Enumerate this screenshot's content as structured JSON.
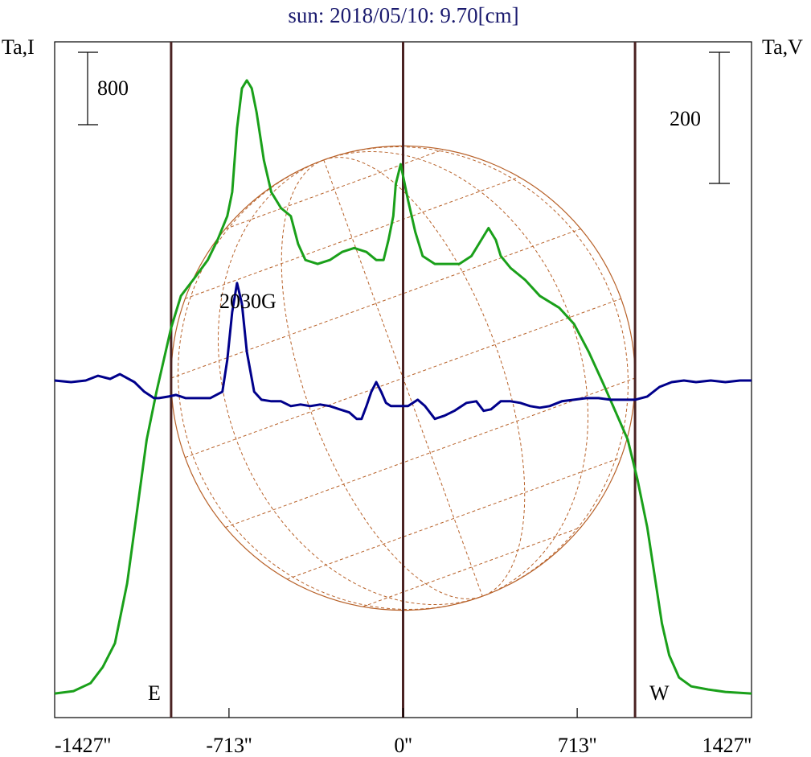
{
  "chart_data": {
    "type": "line",
    "title": "sun: 2018/05/10: 9.70[cm]",
    "y_left_label": "Ta,I",
    "y_right_label": "Ta,V",
    "x_ticks": [
      "-1427''",
      "-713''",
      "0''",
      "713''",
      "1427''"
    ],
    "x_tick_values": [
      -1427,
      -713,
      0,
      713,
      1427
    ],
    "xlim": [
      -1427,
      1427
    ],
    "scale_bar_left": "800",
    "scale_bar_right": "200",
    "annotation": "2030G",
    "annotation_x": -713,
    "limb_east_label": "E",
    "limb_west_label": "W",
    "limb_x": [
      -950,
      950
    ],
    "center_x": 0,
    "solar_radius": 950,
    "colors": {
      "intensity": "#1aa01a",
      "polarization": "#00008b",
      "vertical_lines": "#4a2222",
      "disk": "#b8622a",
      "title": "#1a1a6e"
    },
    "series": [
      {
        "key": "intensity",
        "ylim": [
          0,
          8000
        ],
        "points": [
          [
            -1427,
            120
          ],
          [
            -1350,
            150
          ],
          [
            -1280,
            250
          ],
          [
            -1230,
            450
          ],
          [
            -1180,
            750
          ],
          [
            -1130,
            1500
          ],
          [
            -1090,
            2400
          ],
          [
            -1050,
            3300
          ],
          [
            -1010,
            3900
          ],
          [
            -980,
            4300
          ],
          [
            -950,
            4700
          ],
          [
            -910,
            5100
          ],
          [
            -860,
            5300
          ],
          [
            -800,
            5550
          ],
          [
            -760,
            5800
          ],
          [
            -720,
            6100
          ],
          [
            -700,
            6400
          ],
          [
            -690,
            6800
          ],
          [
            -680,
            7200
          ],
          [
            -660,
            7700
          ],
          [
            -640,
            7800
          ],
          [
            -620,
            7700
          ],
          [
            -600,
            7400
          ],
          [
            -570,
            6800
          ],
          [
            -540,
            6400
          ],
          [
            -500,
            6200
          ],
          [
            -460,
            6100
          ],
          [
            -430,
            5750
          ],
          [
            -400,
            5550
          ],
          [
            -350,
            5500
          ],
          [
            -300,
            5550
          ],
          [
            -250,
            5650
          ],
          [
            -200,
            5700
          ],
          [
            -150,
            5650
          ],
          [
            -110,
            5550
          ],
          [
            -80,
            5550
          ],
          [
            -60,
            5800
          ],
          [
            -40,
            6100
          ],
          [
            -30,
            6500
          ],
          [
            -10,
            6750
          ],
          [
            20,
            6300
          ],
          [
            50,
            5900
          ],
          [
            80,
            5600
          ],
          [
            130,
            5500
          ],
          [
            180,
            5500
          ],
          [
            230,
            5500
          ],
          [
            280,
            5600
          ],
          [
            320,
            5800
          ],
          [
            350,
            5950
          ],
          [
            380,
            5800
          ],
          [
            400,
            5600
          ],
          [
            440,
            5450
          ],
          [
            500,
            5300
          ],
          [
            560,
            5100
          ],
          [
            640,
            4950
          ],
          [
            700,
            4750
          ],
          [
            760,
            4400
          ],
          [
            820,
            4000
          ],
          [
            870,
            3650
          ],
          [
            920,
            3300
          ],
          [
            960,
            2800
          ],
          [
            1000,
            2200
          ],
          [
            1030,
            1600
          ],
          [
            1060,
            1000
          ],
          [
            1090,
            600
          ],
          [
            1130,
            320
          ],
          [
            1180,
            210
          ],
          [
            1250,
            170
          ],
          [
            1320,
            140
          ],
          [
            1427,
            120
          ]
        ]
      },
      {
        "key": "polarization",
        "ylim": [
          -200,
          200
        ],
        "points": [
          [
            -1427,
            2
          ],
          [
            -1360,
            1
          ],
          [
            -1300,
            2
          ],
          [
            -1250,
            5
          ],
          [
            -1200,
            3
          ],
          [
            -1160,
            6
          ],
          [
            -1100,
            1
          ],
          [
            -1060,
            -5
          ],
          [
            -1020,
            -9
          ],
          [
            -1000,
            -9
          ],
          [
            -960,
            -8
          ],
          [
            -930,
            -7
          ],
          [
            -890,
            -9
          ],
          [
            -850,
            -9
          ],
          [
            -790,
            -9
          ],
          [
            -740,
            -5
          ],
          [
            -720,
            15
          ],
          [
            -700,
            45
          ],
          [
            -680,
            63
          ],
          [
            -660,
            50
          ],
          [
            -640,
            20
          ],
          [
            -610,
            -5
          ],
          [
            -580,
            -10
          ],
          [
            -540,
            -11
          ],
          [
            -500,
            -11
          ],
          [
            -460,
            -14
          ],
          [
            -420,
            -13
          ],
          [
            -380,
            -14
          ],
          [
            -340,
            -13
          ],
          [
            -300,
            -14
          ],
          [
            -260,
            -16
          ],
          [
            -220,
            -18
          ],
          [
            -190,
            -22
          ],
          [
            -170,
            -22
          ],
          [
            -150,
            -14
          ],
          [
            -130,
            -5
          ],
          [
            -110,
            1
          ],
          [
            -90,
            -5
          ],
          [
            -70,
            -12
          ],
          [
            -50,
            -14
          ],
          [
            -20,
            -14
          ],
          [
            20,
            -14
          ],
          [
            60,
            -10
          ],
          [
            90,
            -14
          ],
          [
            130,
            -22
          ],
          [
            170,
            -20
          ],
          [
            210,
            -17
          ],
          [
            260,
            -12
          ],
          [
            300,
            -11
          ],
          [
            330,
            -17
          ],
          [
            360,
            -16
          ],
          [
            400,
            -11
          ],
          [
            440,
            -11
          ],
          [
            480,
            -12
          ],
          [
            520,
            -14
          ],
          [
            560,
            -15
          ],
          [
            600,
            -14
          ],
          [
            650,
            -11
          ],
          [
            700,
            -10
          ],
          [
            750,
            -9
          ],
          [
            800,
            -9
          ],
          [
            850,
            -10
          ],
          [
            900,
            -10
          ],
          [
            950,
            -10
          ],
          [
            1000,
            -8
          ],
          [
            1050,
            -2
          ],
          [
            1100,
            1
          ],
          [
            1150,
            2
          ],
          [
            1200,
            1
          ],
          [
            1260,
            2
          ],
          [
            1320,
            1
          ],
          [
            1380,
            2
          ],
          [
            1427,
            2
          ]
        ]
      }
    ]
  }
}
